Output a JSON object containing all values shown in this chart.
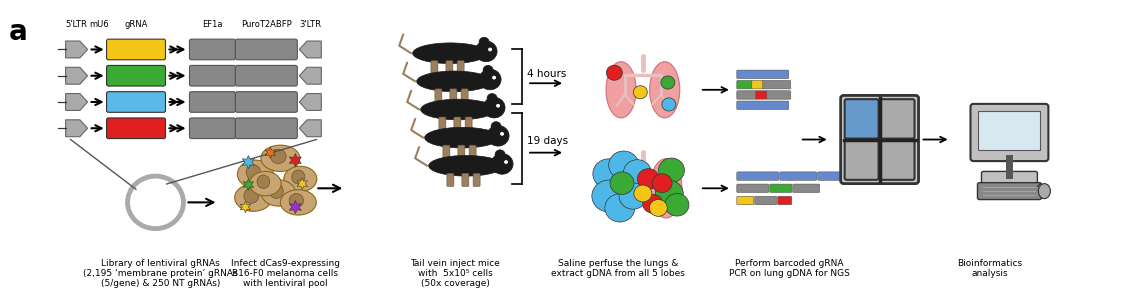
{
  "background_color": "#ffffff",
  "panel_label": "a",
  "panel_label_fontsize": 20,
  "fig_width": 11.21,
  "fig_height": 2.92,
  "grna_colors": [
    "#f5c518",
    "#3aaa35",
    "#5bb8e8",
    "#e02020"
  ],
  "caption_texts": [
    "Library of lentiviral gRNAs\n(2,195 ‘membrane protein’ gRNAs\n(5/gene) & 250 NT gRNAs)",
    "Infect dCas9-expressing\nB16-F0 melanoma cells\nwith lentiviral pool",
    "Tail vein inject mice\nwith  5x10⁵ cells\n(50x coverage)",
    "Saline perfuse the lungs &\nextract gDNA from all 5 lobes",
    "Perform barcoded gRNA\nPCR on lung gDNA for NGS",
    "Bioinformatics\nanalysis"
  ]
}
